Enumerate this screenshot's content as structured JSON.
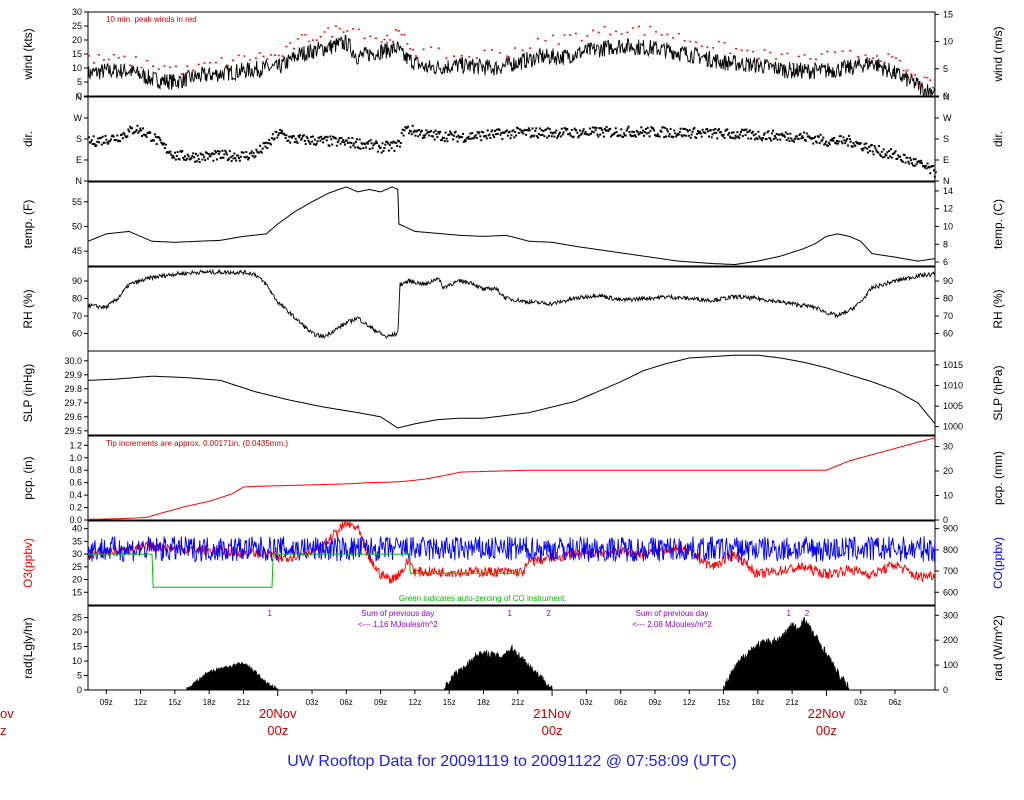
{
  "title": "UW Rooftop Data for 20091119  to  20091122 @ 07:58:09  (UTC)",
  "colors": {
    "black": "#000000",
    "peak": "#ff0000",
    "o3": "#ff0000",
    "co": "#0000ff",
    "zero": "#00bb00",
    "label_red": "#cc0000",
    "note": "#9900cc"
  },
  "chart_data": [
    {
      "id": "wind",
      "type": "line",
      "ylabel_left": "wind (kts)",
      "ylabel_right": "wind (m/s)",
      "ylim": [
        0,
        30
      ],
      "ticks_left": [
        "0",
        "5",
        "10",
        "15",
        "20",
        "25",
        "30"
      ],
      "ticks_right": [
        "0",
        "5",
        "10",
        "15"
      ],
      "ticks_right_values": [
        0,
        9.72,
        19.44,
        29.16
      ],
      "annotation": "10 min. peak winds in red",
      "series": [
        {
          "style": "noisy",
          "x": [
            7.4,
            9,
            11,
            13,
            15,
            17,
            19,
            21,
            23,
            24,
            26,
            28,
            30,
            31,
            33,
            34.5,
            35,
            37,
            40,
            43,
            45,
            47,
            49,
            51,
            54,
            57,
            60,
            63,
            66,
            69,
            72,
            74,
            76,
            78,
            80,
            80.5,
            81.5
          ],
          "y": [
            8,
            9,
            9,
            6,
            5,
            7,
            8,
            9,
            10,
            10,
            15,
            17,
            19,
            14,
            16,
            17,
            14,
            10,
            11,
            10,
            12,
            14,
            14,
            16,
            18,
            17,
            15,
            12,
            11,
            9,
            9,
            10,
            12,
            8,
            4,
            2,
            2
          ],
          "noise": 3
        },
        {
          "style": "peaks",
          "x": [
            7.4,
            10,
            13,
            16,
            19,
            22,
            24,
            26,
            28,
            30,
            33,
            34.5,
            36,
            40,
            44,
            48,
            51,
            54,
            57,
            60,
            63,
            66,
            69,
            72,
            76,
            78,
            80,
            81.5
          ],
          "y": [
            13,
            13,
            11,
            9,
            12,
            14,
            14,
            20,
            22,
            25,
            20,
            22,
            16,
            14,
            16,
            20,
            22,
            24,
            23,
            20,
            17,
            15,
            13,
            14,
            15,
            12,
            5,
            4
          ]
        }
      ]
    },
    {
      "id": "dir",
      "type": "scatter",
      "ylabel_left": "dir.",
      "ylabel_right": "dir.",
      "ylim": [
        0,
        4
      ],
      "ticks": [
        "N",
        "E",
        "S",
        "W",
        "N"
      ],
      "series": [
        {
          "style": "dots",
          "x": [
            7.4,
            10,
            11.5,
            13,
            14,
            15,
            17,
            19,
            21,
            22,
            23,
            24,
            25,
            28,
            31,
            33,
            34.5,
            35,
            37,
            40,
            45,
            50,
            55,
            60,
            65,
            70,
            72,
            74,
            76,
            78,
            80,
            81.5
          ],
          "y": [
            1.85,
            2.1,
            2.5,
            2.1,
            1.6,
            1.2,
            1.15,
            1.2,
            1.2,
            1.3,
            1.7,
            2.3,
            2.0,
            1.9,
            1.8,
            1.6,
            1.7,
            2.5,
            2.2,
            2.1,
            2.3,
            2.3,
            2.35,
            2.3,
            2.2,
            2.1,
            1.9,
            1.9,
            1.5,
            1.2,
            0.8,
            0.4
          ],
          "noise": 0.25
        }
      ]
    },
    {
      "id": "temp",
      "type": "line",
      "ylabel_left": "temp. (F)",
      "ylabel_right": "temp. (C)",
      "ylim": [
        42,
        59
      ],
      "ticks_left": [
        "45",
        "50",
        "55"
      ],
      "ticks_right": [
        "6",
        "8",
        "10",
        "12",
        "14"
      ],
      "ticks_right_values": [
        42.8,
        46.4,
        50,
        53.6,
        57.2
      ],
      "series": [
        {
          "style": "smooth",
          "x": [
            7.4,
            9,
            11,
            13,
            15,
            17,
            19,
            21,
            23,
            24,
            25.5,
            27,
            28.5,
            30,
            31,
            32,
            33,
            34,
            34.5,
            34.6,
            36,
            38,
            40,
            42,
            44,
            46,
            48,
            50,
            53,
            56,
            59,
            62,
            64,
            66,
            68,
            70,
            71,
            72,
            73,
            74,
            75,
            76,
            78,
            80,
            81.5
          ],
          "y": [
            47,
            48.5,
            49,
            47,
            46.8,
            47,
            47.2,
            48,
            48.5,
            50.5,
            53,
            55,
            56.8,
            58,
            57,
            57.5,
            57,
            58,
            57.5,
            50.5,
            49,
            48.6,
            48.2,
            48,
            48.2,
            47,
            46.8,
            46,
            45,
            44,
            43,
            42.5,
            42.3,
            43,
            44,
            45.5,
            46.5,
            48,
            48.5,
            48,
            47,
            44.5,
            43.8,
            43,
            43.5
          ]
        }
      ]
    },
    {
      "id": "rh",
      "type": "line",
      "ylabel_left": "RH (%)",
      "ylabel_right": "RH (%)",
      "ylim": [
        50,
        98
      ],
      "ticks_left": [
        "60",
        "70",
        "80",
        "90"
      ],
      "ticks_right": [
        "60",
        "70",
        "80",
        "90"
      ],
      "series": [
        {
          "style": "noisy",
          "x": [
            7.4,
            9,
            10,
            11,
            13,
            15,
            17,
            19,
            21,
            22,
            23,
            24,
            25,
            26,
            27,
            28,
            29,
            30,
            31,
            32,
            33,
            33.5,
            34.5,
            34.7,
            35.5,
            37,
            38,
            38.5,
            39,
            40,
            41,
            42,
            43,
            44,
            46,
            48,
            50,
            52,
            54,
            56,
            58,
            60,
            62,
            64,
            66,
            68,
            70,
            71,
            72,
            73,
            74,
            75,
            76,
            78,
            80,
            81.5
          ],
          "y": [
            76,
            75,
            80,
            88,
            92,
            94,
            95,
            95,
            95,
            94,
            88,
            78,
            72,
            66,
            60,
            58,
            62,
            66,
            69,
            64,
            60,
            58,
            60,
            88,
            90,
            88,
            92,
            86,
            88,
            90,
            89,
            85,
            86,
            80,
            78,
            77,
            80,
            82,
            79,
            80,
            81,
            80,
            79,
            81,
            80,
            78,
            76,
            75,
            72,
            70,
            73,
            78,
            86,
            90,
            93,
            94
          ],
          "noise": 1.2
        }
      ]
    },
    {
      "id": "slp",
      "type": "line",
      "ylabel_left": "SLP (inHg)",
      "ylabel_right": "SLP (hPa)",
      "ylim": [
        29.47,
        30.07
      ],
      "ticks_left": [
        "29.5",
        "29.6",
        "29.7",
        "29.8",
        "29.9",
        "30.0"
      ],
      "ticks_right": [
        "1000",
        "1005",
        "1010",
        "1015"
      ],
      "ticks_right_values": [
        29.53,
        29.676,
        29.823,
        29.971
      ],
      "series": [
        {
          "style": "smooth",
          "x": [
            7.4,
            10,
            13,
            16,
            19,
            22,
            25,
            28,
            31,
            33,
            34.5,
            36,
            38,
            40,
            42,
            44,
            46,
            48,
            50,
            52,
            54,
            56,
            58,
            60,
            62,
            64,
            66,
            68,
            70,
            72,
            74,
            76,
            78,
            80,
            81.5
          ],
          "y": [
            29.86,
            29.87,
            29.89,
            29.88,
            29.86,
            29.78,
            29.72,
            29.67,
            29.63,
            29.6,
            29.52,
            29.55,
            29.58,
            29.59,
            29.59,
            29.61,
            29.63,
            29.67,
            29.71,
            29.78,
            29.85,
            29.93,
            29.98,
            30.02,
            30.03,
            30.04,
            30.04,
            30.02,
            29.99,
            29.95,
            29.9,
            29.85,
            29.79,
            29.7,
            29.55
          ]
        }
      ]
    },
    {
      "id": "pcp",
      "type": "line",
      "ylabel_left": "pcp. (in)",
      "ylabel_right": "pcp. (mm)",
      "ylim": [
        0,
        1.35
      ],
      "ticks_left": [
        "0.0",
        "0.2",
        "0.4",
        "0.6",
        "0.8",
        "1.0",
        "1.2"
      ],
      "ticks_right": [
        "0",
        "10",
        "20",
        "30"
      ],
      "ticks_right_values": [
        0,
        0.3937,
        0.7874,
        1.1811
      ],
      "annotation": "Tip increments are approx. 0.00171in. (0.0435mm.)",
      "series": [
        {
          "style": "line",
          "x": [
            7.4,
            10,
            12.5,
            14,
            16,
            18,
            20,
            21,
            22,
            24,
            26,
            28,
            30,
            32,
            34,
            35,
            37,
            39,
            40,
            42,
            44,
            46,
            48,
            50,
            52,
            54,
            56,
            58,
            60,
            62,
            64,
            66,
            68,
            70,
            72,
            74,
            76,
            78,
            80,
            81.5
          ],
          "y": [
            0.01,
            0.02,
            0.04,
            0.12,
            0.22,
            0.3,
            0.42,
            0.53,
            0.54,
            0.55,
            0.56,
            0.57,
            0.58,
            0.6,
            0.61,
            0.62,
            0.66,
            0.73,
            0.77,
            0.78,
            0.79,
            0.8,
            0.8,
            0.8,
            0.8,
            0.8,
            0.8,
            0.8,
            0.8,
            0.8,
            0.8,
            0.8,
            0.8,
            0.8,
            0.8,
            0.95,
            1.05,
            1.15,
            1.25,
            1.32
          ]
        }
      ]
    },
    {
      "id": "gas",
      "type": "line",
      "ylabel_left": "O3(ppbv)",
      "ylabel_right": "CO(ppbv)",
      "ylim": [
        10,
        43
      ],
      "ticks_left": [
        "15",
        "20",
        "25",
        "30",
        "35",
        "40"
      ],
      "ticks_right": [
        "600",
        "700",
        "800",
        "900"
      ],
      "ticks_right_values": [
        15,
        23.33,
        31.67,
        40
      ],
      "annotation": "Green indicates auto-zeroing of CO instrument.",
      "series": [
        {
          "name": "O3",
          "style": "noisy",
          "x": [
            7.4,
            10,
            13,
            13.2,
            16,
            20,
            23.5,
            24,
            26,
            28,
            29,
            30,
            31,
            31.5,
            32,
            33,
            34,
            35,
            35.5,
            36,
            38,
            42,
            45.5,
            46,
            50,
            54,
            56,
            58,
            60,
            62,
            64,
            66,
            70,
            72,
            74,
            76,
            78,
            80,
            81.5
          ],
          "y": [
            30,
            31,
            33,
            33,
            32,
            31,
            30,
            28,
            30,
            33,
            38,
            42,
            40,
            34,
            28,
            22,
            20,
            24,
            28,
            23,
            23,
            23,
            23,
            27,
            30,
            31,
            30,
            32,
            31,
            25,
            30,
            22,
            25,
            22,
            24,
            22,
            26,
            21,
            22
          ],
          "noise": 2
        },
        {
          "name": "CO",
          "style": "noisy",
          "x": [
            7.4,
            13,
            13.2,
            23.5,
            24,
            35.5,
            36,
            45.5,
            46,
            81.5
          ],
          "y": [
            32,
            32,
            32,
            32,
            32,
            32,
            32,
            32,
            32,
            32
          ],
          "noise": 5
        },
        {
          "name": "CO zero",
          "style": "line",
          "x": [
            7.4,
            13,
            13.1,
            23.5,
            23.6,
            35.5,
            35.6,
            45.5
          ],
          "y": [
            30,
            30,
            17,
            17,
            30,
            30,
            22.5,
            22.5
          ]
        }
      ]
    },
    {
      "id": "rad",
      "type": "area",
      "ylabel_left": "rad(Lgly/hr)",
      "ylabel_right": "rad (W/m^2)",
      "ylim": [
        0,
        29
      ],
      "ticks_left": [
        "0",
        "5",
        "10",
        "15",
        "20",
        "25"
      ],
      "ticks_right": [
        "0",
        "100",
        "200",
        "300"
      ],
      "ticks_right_values": [
        0,
        8.6,
        17.2,
        25.8
      ],
      "annotations": [
        {
          "text": "Sum of previous day",
          "text2": "<--- 1.16 MJoules/m^2",
          "x": 34.5
        },
        {
          "text": "Sum of previous day",
          "text2": "<--- 2.08 MJoules/m^2",
          "x": 58.5
        },
        {
          "text": "1",
          "x": 23.3
        },
        {
          "text": "1",
          "x": 44.3
        },
        {
          "text": "2",
          "x": 47.7
        },
        {
          "text": "1",
          "x": 68.7
        },
        {
          "text": "2",
          "x": 70.3
        }
      ],
      "series": [
        {
          "style": "fill",
          "x": [
            16,
            17,
            18,
            19,
            20,
            21,
            22,
            23,
            24
          ],
          "y": [
            0,
            3,
            6,
            7,
            8,
            9,
            6,
            2,
            0
          ],
          "noise": 1.5
        },
        {
          "style": "fill",
          "x": [
            38.5,
            39.5,
            40.5,
            41.5,
            42.5,
            43.5,
            44.5,
            45.5,
            46.5,
            47.5,
            48
          ],
          "y": [
            0,
            5,
            8,
            12,
            12,
            11,
            14,
            10,
            6,
            2,
            0
          ],
          "noise": 2.5
        },
        {
          "style": "fill",
          "x": [
            63,
            64,
            65,
            66,
            67,
            68,
            69,
            69.5,
            70,
            71,
            72,
            73,
            74
          ],
          "y": [
            0,
            7,
            12,
            15,
            16,
            17,
            22,
            20,
            24,
            18,
            12,
            5,
            0
          ],
          "noise": 3
        }
      ]
    }
  ],
  "xaxis": {
    "xlim": [
      7.4,
      81.5
    ],
    "hour_ticks": [
      "09z",
      "12z",
      "15z",
      "18z",
      "21z",
      "03z",
      "06z",
      "09z",
      "12z",
      "15z",
      "18z",
      "21z",
      "03z",
      "06z",
      "09z",
      "12z",
      "15z",
      "18z",
      "21z",
      "03z",
      "06z"
    ],
    "hour_tick_values": [
      9,
      12,
      15,
      18,
      21,
      27,
      30,
      33,
      36,
      39,
      42,
      45,
      51,
      54,
      57,
      60,
      63,
      66,
      69,
      75,
      78
    ],
    "day_labels": [
      {
        "l1": "20Nov",
        "l2": "00z",
        "x": 24
      },
      {
        "l1": "21Nov",
        "l2": "00z",
        "x": 48
      },
      {
        "l1": "22Nov",
        "l2": "00z",
        "x": 72
      }
    ],
    "clipped_left": {
      "l1": "ov",
      "l2": "z"
    }
  }
}
